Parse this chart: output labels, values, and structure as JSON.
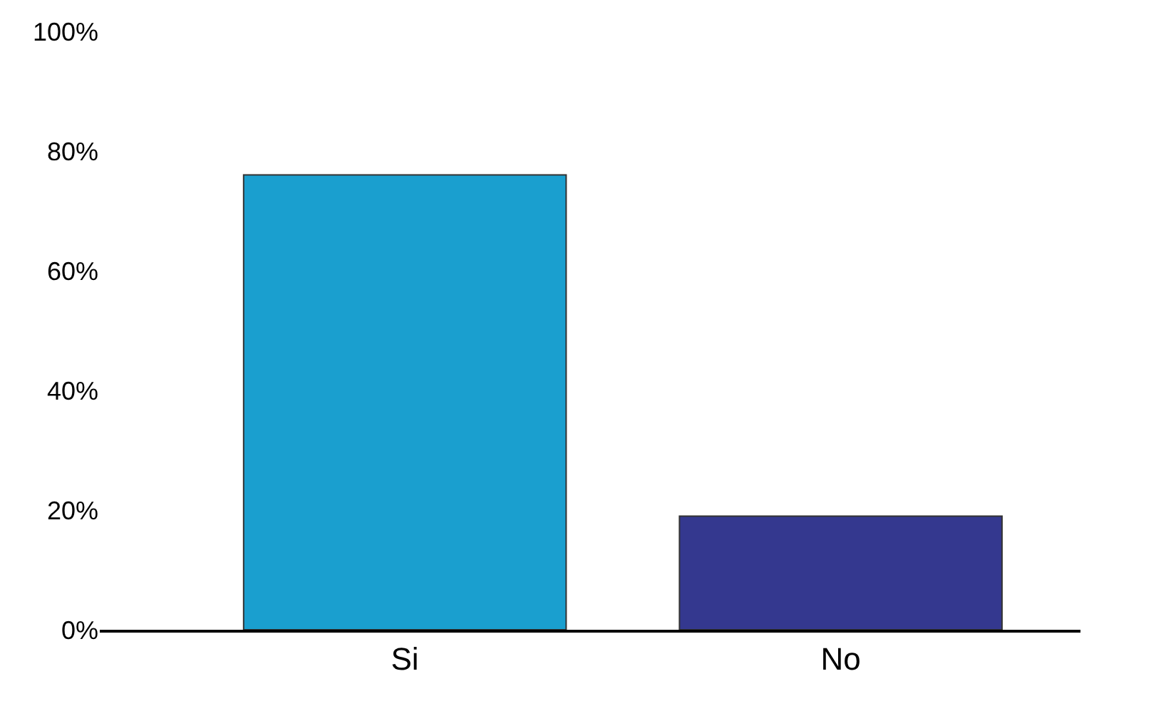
{
  "chart_data": {
    "type": "bar",
    "categories": [
      "Si",
      "No"
    ],
    "values": [
      76,
      19
    ],
    "colors": [
      "#1a9fcf",
      "#34388f"
    ],
    "ylim": [
      0,
      100
    ],
    "yticks": [
      {
        "value": 0,
        "label": "0%"
      },
      {
        "value": 20,
        "label": "20%"
      },
      {
        "value": 40,
        "label": "40%"
      },
      {
        "value": 60,
        "label": "60%"
      },
      {
        "value": 80,
        "label": "80%"
      },
      {
        "value": 100,
        "label": "100%"
      }
    ]
  }
}
